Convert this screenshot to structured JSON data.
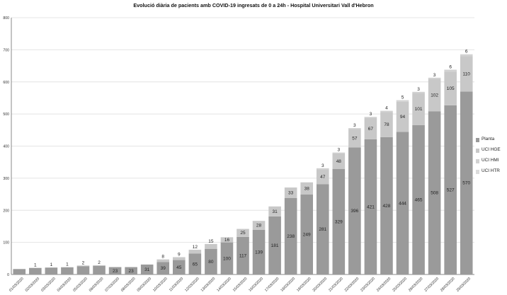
{
  "chart_data": {
    "type": "bar",
    "stacked": true,
    "title": "Evolució diària de pacients amb COVID-19 ingresats de 0 a 24h - Hospital Universitari Vall d'Hebron",
    "xlabel": "",
    "ylabel": "",
    "ylim": [
      0,
      800
    ],
    "yticks": [
      0,
      100,
      200,
      300,
      400,
      500,
      600,
      700,
      800
    ],
    "grid": true,
    "legend_position": "right",
    "categories": [
      "01/03/2020",
      "02/03/2020",
      "03/03/2020",
      "04/03/2020",
      "05/03/2020",
      "06/03/2020",
      "07/03/2020",
      "08/03/2020",
      "09/03/2020",
      "10/03/2020",
      "11/03/2020",
      "12/03/2020",
      "13/03/2020",
      "14/03/2020",
      "15/03/2020",
      "16/03/2020",
      "17/03/2020",
      "18/03/2020",
      "19/03/2020",
      "20/03/2020",
      "21/03/2020",
      "22/03/2020",
      "23/03/2020",
      "24/03/2020",
      "25/03/2020",
      "26/03/2020",
      "27/03/2020",
      "28/03/2020",
      "29/03/2020"
    ],
    "series": [
      {
        "name": "Planta",
        "color": "#9a9a9a",
        "values": [
          17,
          20,
          21,
          22,
          26,
          27,
          23,
          23,
          31,
          39,
          45,
          65,
          80,
          100,
          117,
          139,
          181,
          238,
          249,
          281,
          329,
          396,
          421,
          428,
          444,
          465,
          508,
          527,
          570
        ]
      },
      {
        "name": "UCI HGE",
        "color": "#c8c8c8",
        "values": [
          0,
          1,
          1,
          1,
          2,
          2,
          0,
          0,
          0,
          8,
          9,
          12,
          15,
          16,
          25,
          28,
          31,
          33,
          38,
          47,
          48,
          57,
          67,
          78,
          94,
          101,
          102,
          105,
          110
        ]
      },
      {
        "name": "UCI HMI",
        "color": "#d2d2d2",
        "values": [
          0,
          0,
          0,
          0,
          0,
          0,
          0,
          0,
          0,
          0,
          0,
          0,
          0,
          0,
          0,
          0,
          0,
          0,
          0,
          3,
          3,
          3,
          3,
          4,
          5,
          3,
          3,
          6,
          6
        ]
      },
      {
        "name": "UCI HTR",
        "color": "#dcdcdc",
        "values": [
          0,
          0,
          0,
          0,
          0,
          0,
          0,
          0,
          0,
          0,
          0,
          0,
          0,
          0,
          0,
          0,
          0,
          0,
          0,
          0,
          0,
          0,
          0,
          0,
          0,
          0,
          0,
          0,
          0
        ]
      }
    ],
    "data_labels": [
      [
        "",
        "",
        "",
        "",
        "",
        "",
        "23",
        "23",
        "31",
        "39",
        "45",
        "65",
        "80",
        "100",
        "117",
        "139",
        "181",
        "238",
        "249",
        "281",
        "329",
        "396",
        "421",
        "428",
        "444",
        "465",
        "508",
        "527",
        "570"
      ],
      [
        "",
        "1",
        "1",
        "1",
        "2",
        "2",
        "",
        "",
        "",
        "8",
        "9",
        "12",
        "15",
        "16",
        "25",
        "28",
        "31",
        "33",
        "38",
        "47",
        "48",
        "57",
        "67",
        "78",
        "94",
        "101",
        "102",
        "105",
        "110"
      ],
      [
        "",
        "",
        "",
        "",
        "",
        "",
        "",
        "",
        "",
        "",
        "",
        "",
        "",
        "",
        "",
        "",
        "",
        "",
        "",
        "3",
        "3",
        "3",
        "3",
        "4",
        "5",
        "3",
        "3",
        "6",
        "6"
      ],
      [
        "",
        "",
        "",
        "",
        "",
        "",
        "",
        "",
        "",
        "",
        "",
        "",
        "",
        "",
        "",
        "",
        "",
        "",
        "",
        "",
        "",
        "",
        "",
        "",
        "",
        "",
        "",
        "",
        ""
      ]
    ]
  }
}
